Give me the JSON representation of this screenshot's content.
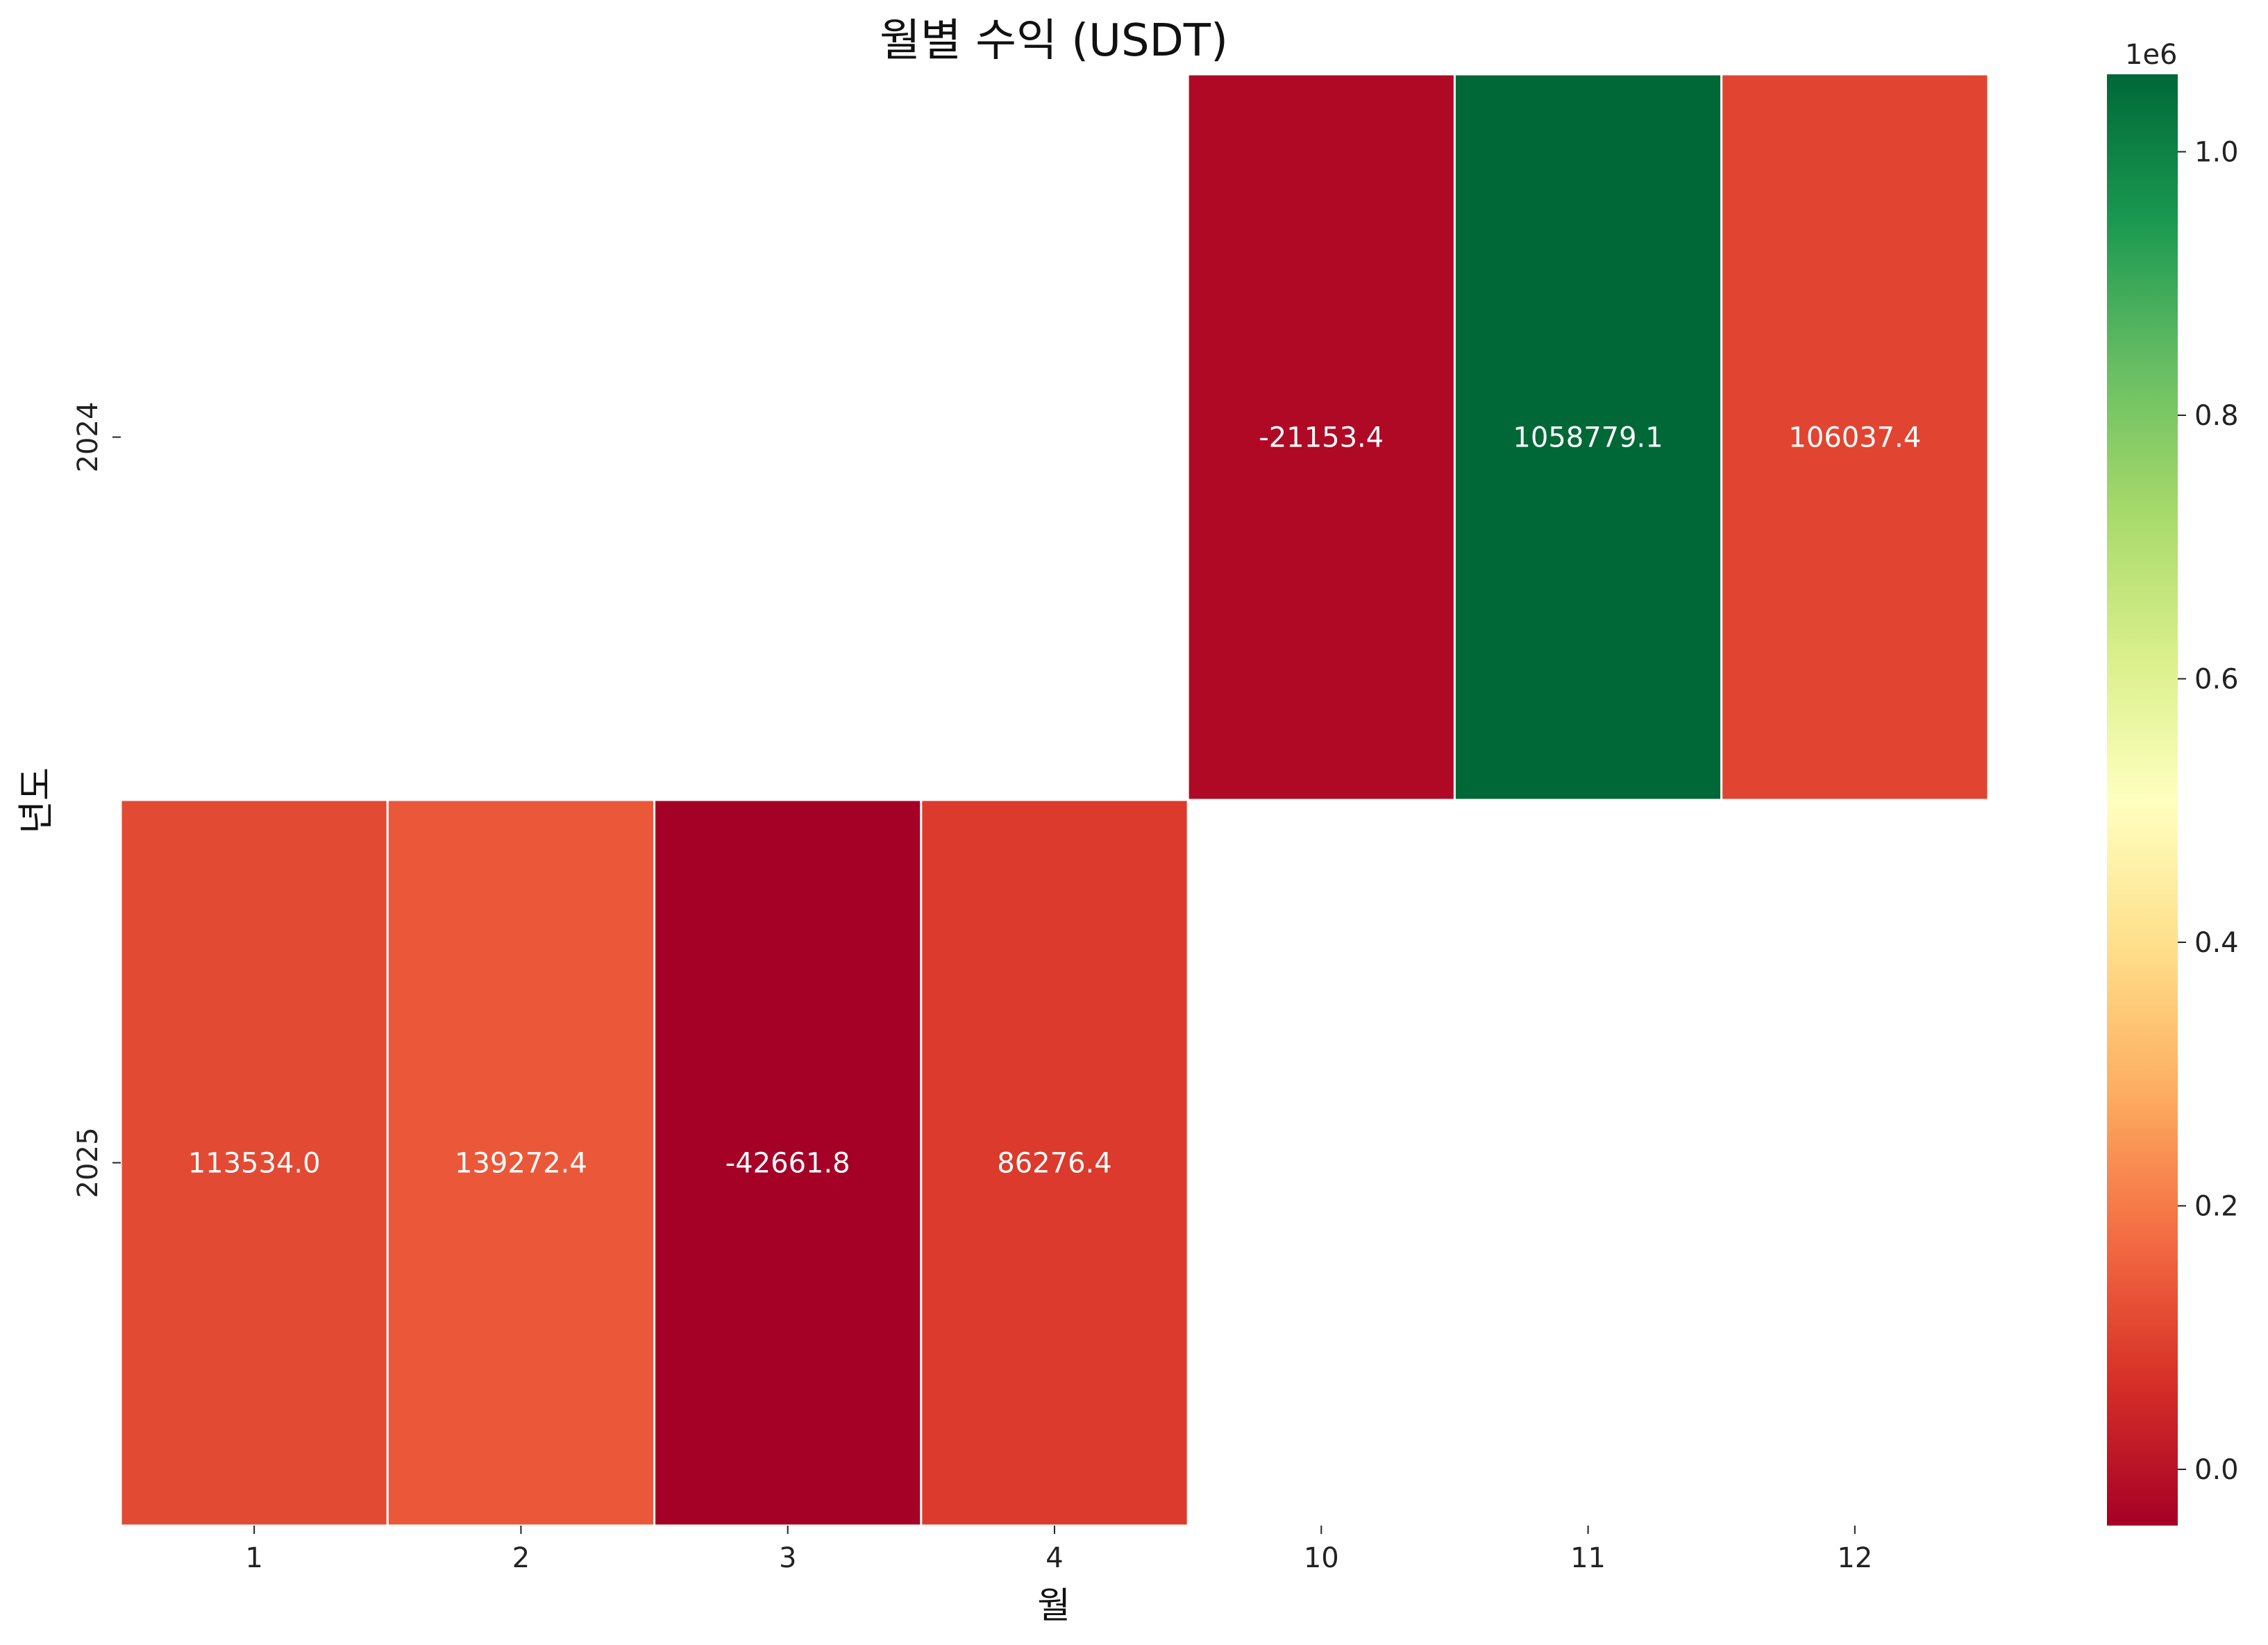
{
  "chart_data": {
    "type": "heatmap",
    "title": "월별 수익 (USDT)",
    "xlabel": "월",
    "ylabel": "년도",
    "x_categories": [
      "1",
      "2",
      "3",
      "4",
      "10",
      "11",
      "12"
    ],
    "y_categories": [
      "2024",
      "2025"
    ],
    "values": [
      [
        null,
        null,
        null,
        null,
        -21153.4,
        1058779.1,
        106037.4
      ],
      [
        113534.0,
        139272.4,
        -42661.8,
        86276.4,
        null,
        null,
        null
      ]
    ],
    "value_labels": [
      [
        null,
        null,
        null,
        null,
        "-21153.4",
        "1058779.1",
        "106037.4"
      ],
      [
        "113534.0",
        "139272.4",
        "-42661.8",
        "86276.4",
        null,
        null,
        null
      ]
    ],
    "colormap": "RdYlGn",
    "vmin": -42661.8,
    "vmax": 1058779.1,
    "colorbar": {
      "offset_label": "1e6",
      "ticks": [
        0.0,
        0.2,
        0.4,
        0.6,
        0.8,
        1.0
      ],
      "tick_labels": [
        "0.0",
        "0.2",
        "0.4",
        "0.6",
        "0.8",
        "1.0"
      ]
    },
    "grid": false,
    "colors": {
      "low": "#a50026",
      "mid": "#ffffbf",
      "high": "#006837",
      "cell_border": "#ffffff",
      "empty_cell": "#ffffff"
    }
  }
}
